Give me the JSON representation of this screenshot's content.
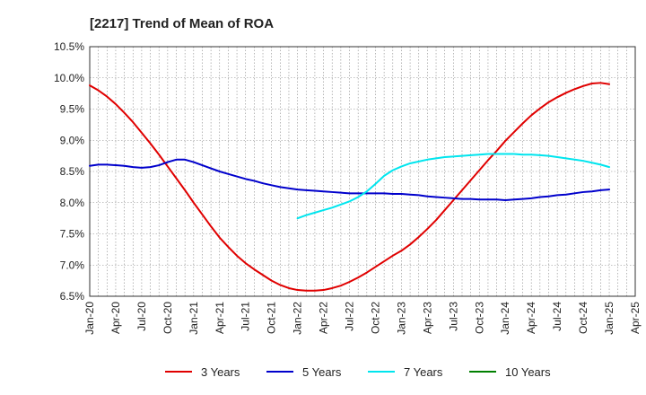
{
  "chart_data": {
    "type": "line",
    "title": "[2217]  Trend of Mean of ROA",
    "xlabel": "",
    "ylabel": "",
    "x_ticks": [
      "Jan-20",
      "Apr-20",
      "Jul-20",
      "Oct-20",
      "Jan-21",
      "Apr-21",
      "Jul-21",
      "Oct-21",
      "Jan-22",
      "Apr-22",
      "Jul-22",
      "Oct-22",
      "Jan-23",
      "Apr-23",
      "Jul-23",
      "Oct-23",
      "Jan-24",
      "Apr-24",
      "Jul-24",
      "Oct-24",
      "Jan-25",
      "Apr-25"
    ],
    "y_ticks": [
      "6.5%",
      "7.0%",
      "7.5%",
      "8.0%",
      "8.5%",
      "9.0%",
      "9.5%",
      "10.0%",
      "10.5%"
    ],
    "ylim": [
      6.5,
      10.5
    ],
    "grid": true,
    "legend_position": "bottom",
    "series": [
      {
        "name": "3 Years",
        "color": "#e00000",
        "points": [
          [
            "Jan-20",
            9.88
          ],
          [
            "Feb-20",
            9.8
          ],
          [
            "Mar-20",
            9.7
          ],
          [
            "Apr-20",
            9.58
          ],
          [
            "May-20",
            9.44
          ],
          [
            "Jun-20",
            9.29
          ],
          [
            "Jul-20",
            9.12
          ],
          [
            "Aug-20",
            8.95
          ],
          [
            "Sep-20",
            8.77
          ],
          [
            "Oct-20",
            8.58
          ],
          [
            "Nov-20",
            8.39
          ],
          [
            "Dec-20",
            8.2
          ],
          [
            "Jan-21",
            8.0
          ],
          [
            "Feb-21",
            7.81
          ],
          [
            "Mar-21",
            7.62
          ],
          [
            "Apr-21",
            7.44
          ],
          [
            "May-21",
            7.29
          ],
          [
            "Jun-21",
            7.15
          ],
          [
            "Jul-21",
            7.03
          ],
          [
            "Aug-21",
            6.93
          ],
          [
            "Sep-21",
            6.84
          ],
          [
            "Oct-21",
            6.75
          ],
          [
            "Nov-21",
            6.68
          ],
          [
            "Dec-21",
            6.63
          ],
          [
            "Jan-22",
            6.6
          ],
          [
            "Feb-22",
            6.59
          ],
          [
            "Mar-22",
            6.59
          ],
          [
            "Apr-22",
            6.6
          ],
          [
            "May-22",
            6.63
          ],
          [
            "Jun-22",
            6.67
          ],
          [
            "Jul-22",
            6.73
          ],
          [
            "Aug-22",
            6.8
          ],
          [
            "Sep-22",
            6.88
          ],
          [
            "Oct-22",
            6.97
          ],
          [
            "Nov-22",
            7.06
          ],
          [
            "Dec-22",
            7.15
          ],
          [
            "Jan-23",
            7.23
          ],
          [
            "Feb-23",
            7.33
          ],
          [
            "Mar-23",
            7.45
          ],
          [
            "Apr-23",
            7.58
          ],
          [
            "May-23",
            7.72
          ],
          [
            "Jun-23",
            7.88
          ],
          [
            "Jul-23",
            8.04
          ],
          [
            "Aug-23",
            8.2
          ],
          [
            "Sep-23",
            8.36
          ],
          [
            "Oct-23",
            8.52
          ],
          [
            "Nov-23",
            8.68
          ],
          [
            "Dec-23",
            8.83
          ],
          [
            "Jan-24",
            8.99
          ],
          [
            "Feb-24",
            9.13
          ],
          [
            "Mar-24",
            9.27
          ],
          [
            "Apr-24",
            9.4
          ],
          [
            "May-24",
            9.51
          ],
          [
            "Jun-24",
            9.61
          ],
          [
            "Jul-24",
            9.69
          ],
          [
            "Aug-24",
            9.76
          ],
          [
            "Sep-24",
            9.82
          ],
          [
            "Oct-24",
            9.87
          ],
          [
            "Nov-24",
            9.91
          ],
          [
            "Dec-24",
            9.92
          ],
          [
            "Jan-25",
            9.9
          ]
        ]
      },
      {
        "name": "5 Years",
        "color": "#0000cc",
        "points": [
          [
            "Jan-20",
            8.59
          ],
          [
            "Feb-20",
            8.61
          ],
          [
            "Mar-20",
            8.61
          ],
          [
            "Apr-20",
            8.6
          ],
          [
            "May-20",
            8.59
          ],
          [
            "Jun-20",
            8.57
          ],
          [
            "Jul-20",
            8.56
          ],
          [
            "Aug-20",
            8.57
          ],
          [
            "Sep-20",
            8.6
          ],
          [
            "Oct-20",
            8.65
          ],
          [
            "Nov-20",
            8.69
          ],
          [
            "Dec-20",
            8.69
          ],
          [
            "Jan-21",
            8.65
          ],
          [
            "Feb-21",
            8.6
          ],
          [
            "Mar-21",
            8.55
          ],
          [
            "Apr-21",
            8.5
          ],
          [
            "May-21",
            8.46
          ],
          [
            "Jun-21",
            8.42
          ],
          [
            "Jul-21",
            8.38
          ],
          [
            "Aug-21",
            8.35
          ],
          [
            "Sep-21",
            8.31
          ],
          [
            "Oct-21",
            8.28
          ],
          [
            "Nov-21",
            8.25
          ],
          [
            "Dec-21",
            8.23
          ],
          [
            "Jan-22",
            8.21
          ],
          [
            "Feb-22",
            8.2
          ],
          [
            "Mar-22",
            8.19
          ],
          [
            "Apr-22",
            8.18
          ],
          [
            "May-22",
            8.17
          ],
          [
            "Jun-22",
            8.16
          ],
          [
            "Jul-22",
            8.15
          ],
          [
            "Aug-22",
            8.15
          ],
          [
            "Sep-22",
            8.15
          ],
          [
            "Oct-22",
            8.15
          ],
          [
            "Nov-22",
            8.15
          ],
          [
            "Dec-22",
            8.14
          ],
          [
            "Jan-23",
            8.14
          ],
          [
            "Feb-23",
            8.13
          ],
          [
            "Mar-23",
            8.12
          ],
          [
            "Apr-23",
            8.1
          ],
          [
            "May-23",
            8.09
          ],
          [
            "Jun-23",
            8.08
          ],
          [
            "Jul-23",
            8.07
          ],
          [
            "Aug-23",
            8.06
          ],
          [
            "Sep-23",
            8.06
          ],
          [
            "Oct-23",
            8.05
          ],
          [
            "Nov-23",
            8.05
          ],
          [
            "Dec-23",
            8.05
          ],
          [
            "Jan-24",
            8.04
          ],
          [
            "Feb-24",
            8.05
          ],
          [
            "Mar-24",
            8.06
          ],
          [
            "Apr-24",
            8.07
          ],
          [
            "May-24",
            8.09
          ],
          [
            "Jun-24",
            8.1
          ],
          [
            "Jul-24",
            8.12
          ],
          [
            "Aug-24",
            8.13
          ],
          [
            "Sep-24",
            8.15
          ],
          [
            "Oct-24",
            8.17
          ],
          [
            "Nov-24",
            8.18
          ],
          [
            "Dec-24",
            8.2
          ],
          [
            "Jan-25",
            8.21
          ]
        ]
      },
      {
        "name": "7 Years",
        "color": "#00e5ee",
        "points": [
          [
            "Jan-22",
            7.75
          ],
          [
            "Feb-22",
            7.8
          ],
          [
            "Mar-22",
            7.84
          ],
          [
            "Apr-22",
            7.88
          ],
          [
            "May-22",
            7.92
          ],
          [
            "Jun-22",
            7.97
          ],
          [
            "Jul-22",
            8.02
          ],
          [
            "Aug-22",
            8.09
          ],
          [
            "Sep-22",
            8.18
          ],
          [
            "Oct-22",
            8.3
          ],
          [
            "Nov-22",
            8.43
          ],
          [
            "Dec-22",
            8.52
          ],
          [
            "Jan-23",
            8.58
          ],
          [
            "Feb-23",
            8.63
          ],
          [
            "Mar-23",
            8.66
          ],
          [
            "Apr-23",
            8.69
          ],
          [
            "May-23",
            8.71
          ],
          [
            "Jun-23",
            8.73
          ],
          [
            "Jul-23",
            8.74
          ],
          [
            "Aug-23",
            8.75
          ],
          [
            "Sep-23",
            8.76
          ],
          [
            "Oct-23",
            8.77
          ],
          [
            "Nov-23",
            8.78
          ],
          [
            "Dec-23",
            8.78
          ],
          [
            "Jan-24",
            8.78
          ],
          [
            "Feb-24",
            8.78
          ],
          [
            "Mar-24",
            8.77
          ],
          [
            "Apr-24",
            8.77
          ],
          [
            "May-24",
            8.76
          ],
          [
            "Jun-24",
            8.75
          ],
          [
            "Jul-24",
            8.73
          ],
          [
            "Aug-24",
            8.71
          ],
          [
            "Sep-24",
            8.69
          ],
          [
            "Oct-24",
            8.67
          ],
          [
            "Nov-24",
            8.64
          ],
          [
            "Dec-24",
            8.61
          ],
          [
            "Jan-25",
            8.57
          ]
        ]
      },
      {
        "name": "10 Years",
        "color": "#008000",
        "points": []
      }
    ]
  }
}
